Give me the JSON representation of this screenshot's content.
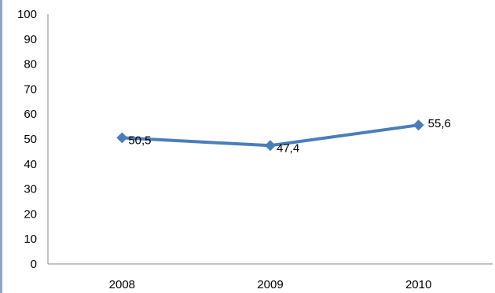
{
  "chart_data": {
    "type": "line",
    "categories": [
      "2008",
      "2009",
      "2010"
    ],
    "series": [
      {
        "values": [
          50.5,
          47.4,
          55.6
        ],
        "data_labels": [
          "50,5",
          "47,4",
          "55,6"
        ],
        "color": "#4a7ebb",
        "marker": "diamond"
      }
    ],
    "ylim": [
      0,
      100
    ],
    "yticks": [
      0,
      10,
      20,
      30,
      40,
      50,
      60,
      70,
      80,
      90,
      100
    ],
    "ytick_labels": [
      "0",
      "10",
      "20",
      "30",
      "40",
      "50",
      "60",
      "70",
      "80",
      "90",
      "100"
    ],
    "grid": false,
    "legend": "none",
    "title": "",
    "xlabel": "",
    "ylabel": ""
  }
}
